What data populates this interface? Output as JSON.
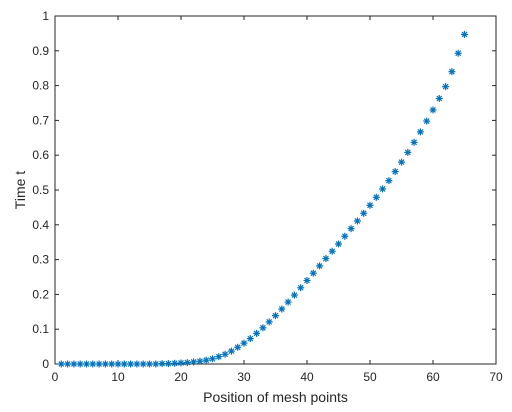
{
  "chart_data": {
    "type": "scatter",
    "xlabel": "Position of mesh points",
    "ylabel": "Time t",
    "xlim": [
      0,
      70
    ],
    "ylim": [
      0,
      1
    ],
    "xticks": [
      0,
      10,
      20,
      30,
      40,
      50,
      60,
      70
    ],
    "yticks": [
      0,
      0.1,
      0.2,
      0.3,
      0.4,
      0.5,
      0.6,
      0.7,
      0.8,
      0.9,
      1
    ],
    "xtick_labels": [
      "0",
      "10",
      "20",
      "30",
      "40",
      "50",
      "60",
      "70"
    ],
    "ytick_labels": [
      "0",
      "0.1",
      "0.2",
      "0.3",
      "0.4",
      "0.5",
      "0.6",
      "0.7",
      "0.8",
      "0.9",
      "1"
    ],
    "grid": false,
    "marker": "asterisk",
    "color": "#0072BD",
    "series": [
      {
        "x": [
          1,
          2,
          3,
          4,
          5,
          6,
          7,
          8,
          9,
          10,
          11,
          12,
          13,
          14,
          15,
          16,
          17,
          18,
          19,
          20,
          21,
          22,
          23,
          24,
          25,
          26,
          27,
          28,
          29,
          30,
          31,
          32,
          33,
          34,
          35,
          36,
          37,
          38,
          39,
          40,
          41,
          42,
          43,
          44,
          45,
          46,
          47,
          48,
          49,
          50,
          51,
          52,
          53,
          54,
          55,
          56,
          57,
          58,
          59,
          60,
          61,
          62,
          63,
          64,
          65
        ],
        "y": [
          0.0,
          0.0,
          0.0,
          0.0,
          0.0,
          0.0,
          0.0,
          0.0,
          0.0,
          0.0,
          0.0,
          0.0,
          0.0,
          0.0,
          0.0,
          0.0,
          0.001,
          0.001,
          0.002,
          0.003,
          0.004,
          0.006,
          0.008,
          0.011,
          0.015,
          0.021,
          0.028,
          0.037,
          0.048,
          0.06,
          0.073,
          0.088,
          0.104,
          0.121,
          0.139,
          0.158,
          0.178,
          0.198,
          0.219,
          0.24,
          0.261,
          0.282,
          0.303,
          0.324,
          0.345,
          0.367,
          0.389,
          0.411,
          0.433,
          0.456,
          0.479,
          0.503,
          0.527,
          0.553,
          0.58,
          0.608,
          0.637,
          0.667,
          0.698,
          0.73,
          0.763,
          0.797,
          0.84,
          0.893,
          0.947
        ]
      }
    ]
  }
}
